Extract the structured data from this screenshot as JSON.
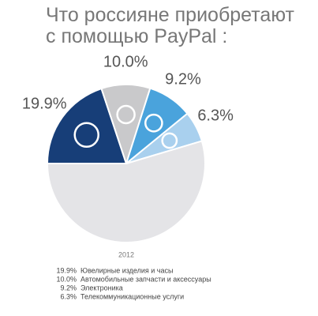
{
  "chart_data": {
    "type": "pie",
    "title": "Что россияне приобретают с помощью PayPal :",
    "subtitle": "2012",
    "categories": [
      "Ювелирные изделия и часы",
      "Автомобильные запчасти и аксессуары",
      "Электроника",
      "Телекоммуникационные услуги",
      null
    ],
    "values": [
      19.9,
      10.0,
      9.2,
      6.3,
      54.6
    ],
    "value_labels": [
      "19.9%",
      "10.0%",
      "9.2%",
      "6.3%",
      null
    ],
    "colors": [
      "#173e78",
      "#c9c9cb",
      "#4aa3dc",
      "#a9d0ee",
      "#e4e4e7"
    ]
  }
}
